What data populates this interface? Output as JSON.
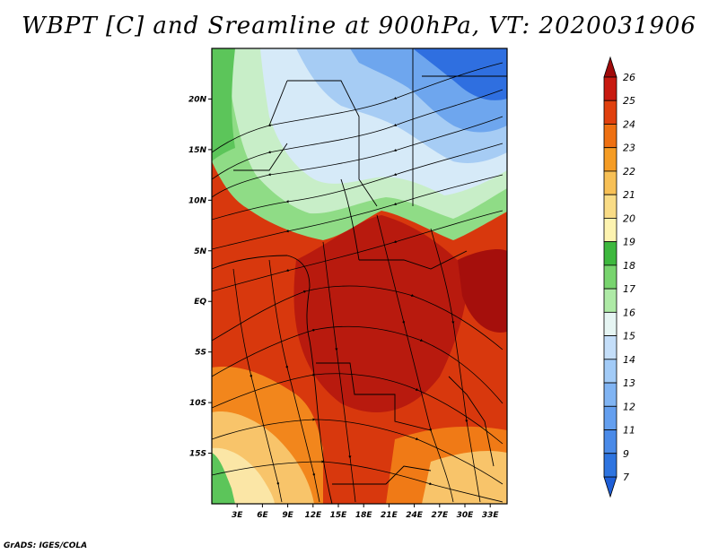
{
  "title": "WBPT [C] and Sreamline at 900hPa, VT: 2020031906",
  "credit": "GrADS: IGES/COLA",
  "map": {
    "variable": "Wet-bulb potential temperature",
    "unit": "C",
    "level": "900hPa",
    "valid_time": "2020031906",
    "lat_labels": [
      "20N",
      "15N",
      "10N",
      "5N",
      "EQ",
      "5S",
      "10S",
      "15S"
    ],
    "lat_values": [
      20,
      15,
      10,
      5,
      0,
      -5,
      -10,
      -15
    ],
    "lon_labels": [
      "3E",
      "6E",
      "9E",
      "12E",
      "15E",
      "18E",
      "21E",
      "24E",
      "27E",
      "30E",
      "33E"
    ],
    "lon_values": [
      3,
      6,
      9,
      12,
      15,
      18,
      21,
      24,
      27,
      30,
      33
    ],
    "lon_range": [
      0,
      35
    ],
    "lat_range": [
      -20,
      25
    ]
  },
  "colorbar": {
    "levels": [
      "7",
      "9",
      "11",
      "12",
      "13",
      "14",
      "15",
      "16",
      "17",
      "18",
      "19",
      "20",
      "21",
      "22",
      "23",
      "24",
      "25",
      "26"
    ],
    "colors": [
      "#1e5fd8",
      "#2e74e0",
      "#4a8ae8",
      "#649fef",
      "#80b4f3",
      "#a2cbf7",
      "#c4def9",
      "#e6f5f3",
      "#aeeaa6",
      "#78d46e",
      "#3eb83e",
      "#fdf3b0",
      "#f9dc86",
      "#f7c056",
      "#f59c24",
      "#ee7012",
      "#e0400e",
      "#c81a10",
      "#a00a0a"
    ]
  }
}
